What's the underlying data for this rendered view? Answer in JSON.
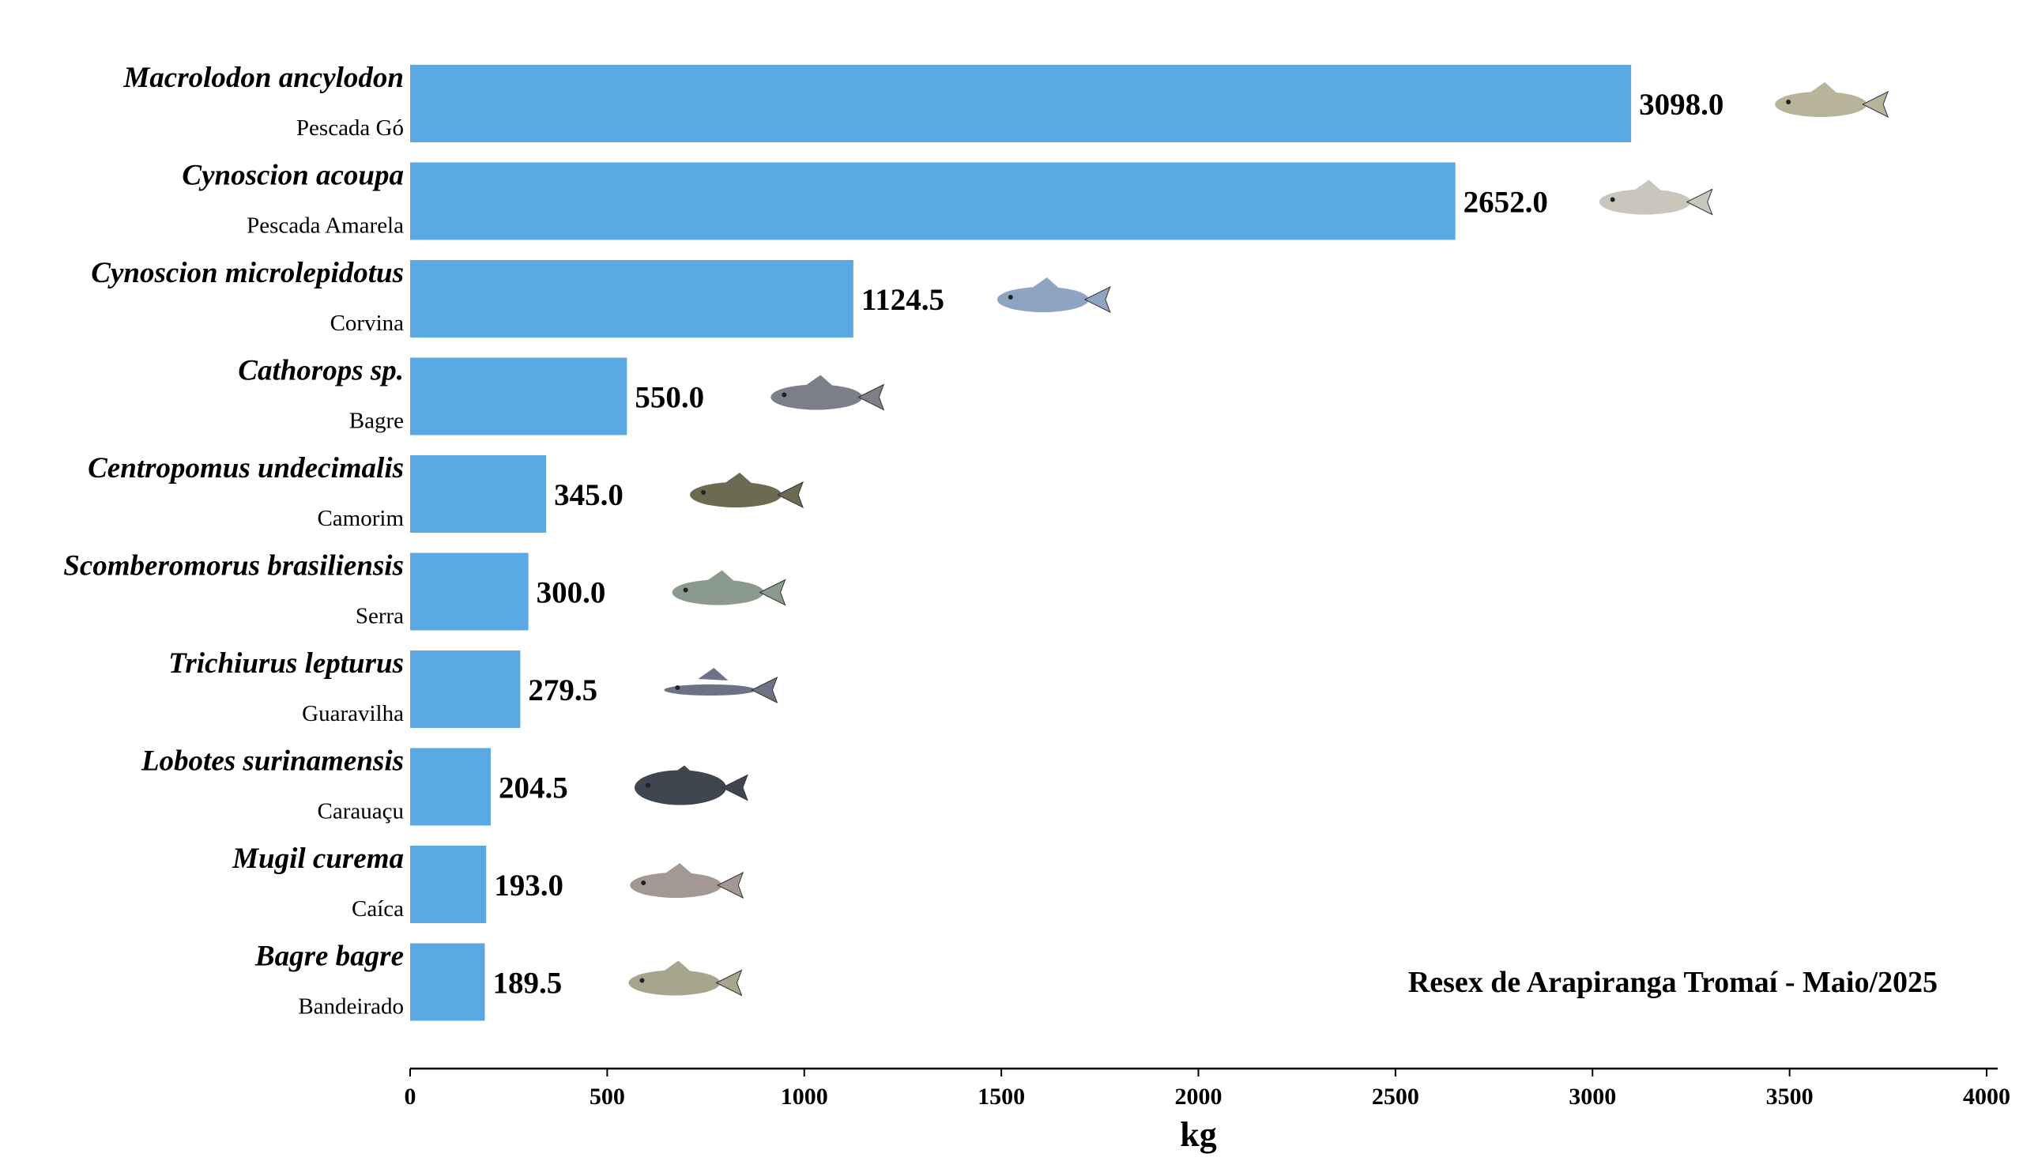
{
  "chart_data": {
    "type": "bar",
    "orientation": "horizontal",
    "categories": [
      {
        "scientific": "Macrolodon ancylodon",
        "common": "Pescada Gó"
      },
      {
        "scientific": "Cynoscion acoupa",
        "common": "Pescada Amarela"
      },
      {
        "scientific": "Cynoscion microlepidotus",
        "common": "Corvina"
      },
      {
        "scientific": "Cathorops sp.",
        "common": "Bagre"
      },
      {
        "scientific": "Centropomus undecimalis",
        "common": "Camorim"
      },
      {
        "scientific": "Scomberomorus brasiliensis",
        "common": "Serra"
      },
      {
        "scientific": "Trichiurus lepturus",
        "common": "Guaravilha"
      },
      {
        "scientific": "Lobotes surinamensis",
        "common": "Carauaçu"
      },
      {
        "scientific": "Mugil curema",
        "common": "Caíca"
      },
      {
        "scientific": "Bagre bagre",
        "common": "Bandeirado"
      }
    ],
    "values": [
      3098.0,
      2652.0,
      1124.5,
      550.0,
      345.0,
      300.0,
      279.5,
      204.5,
      193.0,
      189.5
    ],
    "value_labels": [
      "3098.0",
      "2652.0",
      "1124.5",
      "550.0",
      "345.0",
      "300.0",
      "279.5",
      "204.5",
      "193.0",
      "189.5"
    ],
    "xlabel": "kg",
    "ylabel": "",
    "xlim": [
      0,
      4000
    ],
    "xticks": [
      "0",
      "500",
      "1000",
      "1500",
      "2000",
      "2500",
      "3000",
      "3500",
      "4000"
    ],
    "annotation": "Resex de Arapiranga Tromaí - Maio/2025",
    "grid": false,
    "bar_color": "#5aa8e4",
    "fish_colors": [
      "#b8b49a",
      "#c9c6bb",
      "#8fa4c0",
      "#7c7f8a",
      "#6d6a52",
      "#8a9a8e",
      "#6b7384",
      "#3f4650",
      "#a39894",
      "#a7a58e"
    ]
  }
}
